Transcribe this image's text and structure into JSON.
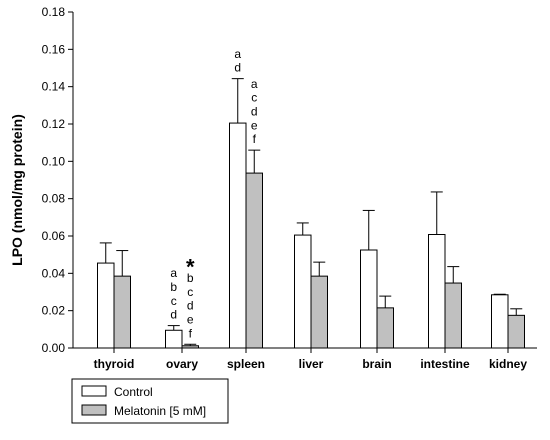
{
  "chart_data": {
    "type": "bar",
    "ylabel": "LPO (nmol/mg protein)",
    "xlabel": "",
    "ylim": [
      0,
      0.18
    ],
    "yticks": [
      "0.00",
      "0.02",
      "0.04",
      "0.06",
      "0.08",
      "0.10",
      "0.12",
      "0.14",
      "0.16",
      "0.18"
    ],
    "categories": [
      "thyroid",
      "ovary",
      "spleen",
      "liver",
      "brain",
      "intestine",
      "kidney"
    ],
    "series": [
      {
        "name": "Control",
        "color": "#ffffff",
        "values": [
          0.0455,
          0.0095,
          0.1205,
          0.0605,
          0.0525,
          0.0608,
          0.0285
        ],
        "errors": [
          0.0108,
          0.0025,
          0.0238,
          0.0065,
          0.0212,
          0.0228,
          0.0003
        ]
      },
      {
        "name": "Melatonin [5 mM]",
        "color": "#c0c0c0",
        "values": [
          0.0385,
          0.0012,
          0.0937,
          0.0385,
          0.0215,
          0.0348,
          0.0175
        ],
        "errors": [
          0.0137,
          0.0008,
          0.0123,
          0.0075,
          0.0063,
          0.0088,
          0.0035
        ]
      }
    ],
    "annotations": [
      {
        "category": "ovary",
        "series": 0,
        "letters": [
          "a",
          "b",
          "c",
          "d"
        ]
      },
      {
        "category": "ovary",
        "series": 1,
        "letters": [
          "b",
          "c",
          "d",
          "e",
          "f"
        ],
        "star": "*"
      },
      {
        "category": "spleen",
        "series": 0,
        "letters": [
          "a",
          "d"
        ]
      },
      {
        "category": "spleen",
        "series": 1,
        "letters": [
          "a",
          "c",
          "d",
          "e",
          "f"
        ]
      }
    ],
    "legend": {
      "placement": "bottom-left",
      "boxed": true
    },
    "grid": false
  }
}
